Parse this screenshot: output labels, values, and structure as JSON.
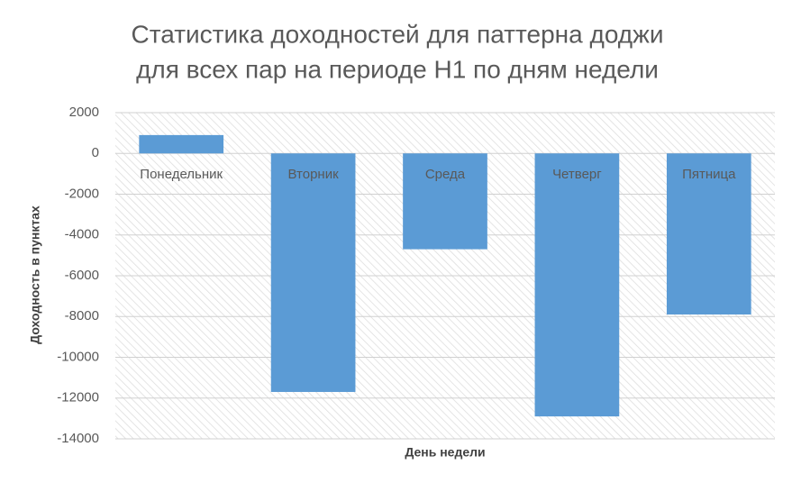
{
  "chart_data": {
    "type": "bar",
    "title": [
      "Статистика доходностей для паттерна доджи",
      "для всех пар на периоде H1 по дням недели"
    ],
    "x_label": "День недели",
    "y_label": "Доходность в пунктах",
    "categories": [
      "Понедельник",
      "Вторник",
      "Среда",
      "Четверг",
      "Пятница"
    ],
    "values": [
      900,
      -11700,
      -4700,
      -12900,
      -7900
    ],
    "color": "#5b9bd5",
    "ylim": [
      -14000,
      2000
    ],
    "yticks": [
      -14000,
      -12000,
      -10000,
      -8000,
      -6000,
      -4000,
      -2000,
      0,
      2000
    ],
    "grid": true
  }
}
